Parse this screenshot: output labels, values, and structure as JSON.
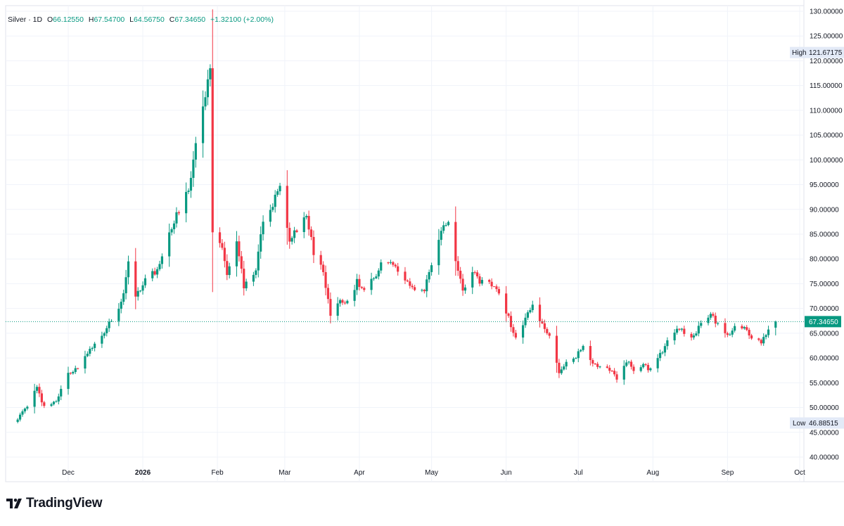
{
  "legend": {
    "symbol": "Silver",
    "interval": "1D",
    "open_label": "O",
    "open": "66.12550",
    "high_label": "H",
    "high": "67.54700",
    "low_label": "L",
    "low": "64.56750",
    "close_label": "C",
    "close": "67.34650",
    "change": "+1.32100 (+2.00%)"
  },
  "brand": {
    "name": "TradingView",
    "logo_icon": "tradingview-logo-icon"
  },
  "colors": {
    "up": "#089981",
    "down": "#f23645",
    "grid": "#f0f3fa",
    "price_line": "#089981",
    "badge_bg": "#e3eaf7"
  },
  "chart_data": {
    "type": "candlestick",
    "title": "Silver · 1D",
    "ylim": [
      40,
      130
    ],
    "y_ticks": [
      "130.00000",
      "125.00000",
      "120.00000",
      "115.00000",
      "110.00000",
      "105.00000",
      "100.00000",
      "95.00000",
      "90.00000",
      "85.00000",
      "80.00000",
      "75.00000",
      "70.00000",
      "65.00000",
      "60.00000",
      "55.00000",
      "50.00000",
      "45.00000",
      "40.00000"
    ],
    "x_ticks": [
      "Dec",
      "2026",
      "Feb",
      "Mar",
      "Apr",
      "May",
      "Jun",
      "Jul",
      "Aug",
      "Sep",
      "Oct"
    ],
    "grid": true,
    "current_price": "67.34650",
    "high_label": "High",
    "high_value": "121.67175",
    "low_label": "Low",
    "low_value": "46.88515",
    "anchors": [
      [
        "2025-11-10",
        47.5
      ],
      [
        "2025-11-14",
        50.5
      ],
      [
        "2025-11-18",
        53.8
      ],
      [
        "2025-11-21",
        50.2
      ],
      [
        "2025-11-26",
        51.0
      ],
      [
        "2025-12-01",
        57.0
      ],
      [
        "2025-12-05",
        58.0
      ],
      [
        "2025-12-10",
        61.5
      ],
      [
        "2025-12-15",
        64.8
      ],
      [
        "2025-12-19",
        67.5
      ],
      [
        "2025-12-23",
        71.0
      ],
      [
        "2025-12-26",
        79.0
      ],
      [
        "2025-12-29",
        72.0
      ],
      [
        "2026-01-02",
        76.0
      ],
      [
        "2026-01-06",
        77.5
      ],
      [
        "2026-01-09",
        80.0
      ],
      [
        "2026-01-13",
        86.5
      ],
      [
        "2026-01-16",
        90.0
      ],
      [
        "2026-01-20",
        94.0
      ],
      [
        "2026-01-23",
        103.5
      ],
      [
        "2026-01-27",
        113.0
      ],
      [
        "2026-01-29",
        118.0
      ],
      [
        "2026-01-30",
        85.0
      ],
      [
        "2026-02-03",
        82.0
      ],
      [
        "2026-02-05",
        77.0
      ],
      [
        "2026-02-09",
        84.0
      ],
      [
        "2026-02-12",
        74.0
      ],
      [
        "2026-02-17",
        78.0
      ],
      [
        "2026-02-20",
        88.0
      ],
      [
        "2026-02-24",
        91.0
      ],
      [
        "2026-02-27",
        95.5
      ],
      [
        "2026-03-03",
        83.5
      ],
      [
        "2026-03-06",
        86.0
      ],
      [
        "2026-03-10",
        88.5
      ],
      [
        "2026-03-13",
        81.5
      ],
      [
        "2026-03-17",
        78.0
      ],
      [
        "2026-03-20",
        68.0
      ],
      [
        "2026-03-24",
        72.0
      ],
      [
        "2026-03-27",
        71.0
      ],
      [
        "2026-03-31",
        75.5
      ],
      [
        "2026-04-03",
        73.5
      ],
      [
        "2026-04-07",
        76.0
      ],
      [
        "2026-04-10",
        79.0
      ],
      [
        "2026-04-14",
        80.0
      ],
      [
        "2026-04-17",
        77.0
      ],
      [
        "2026-04-21",
        76.0
      ],
      [
        "2026-04-24",
        73.5
      ],
      [
        "2026-04-28",
        74.0
      ],
      [
        "2026-05-01",
        79.0
      ],
      [
        "2026-05-05",
        86.0
      ],
      [
        "2026-05-08",
        87.0
      ],
      [
        "2026-05-11",
        79.5
      ],
      [
        "2026-05-14",
        73.5
      ],
      [
        "2026-05-18",
        77.5
      ],
      [
        "2026-05-21",
        75.5
      ],
      [
        "2026-05-26",
        75.0
      ],
      [
        "2026-05-29",
        73.0
      ],
      [
        "2026-06-02",
        68.0
      ],
      [
        "2026-06-05",
        64.0
      ],
      [
        "2026-06-09",
        68.0
      ],
      [
        "2026-06-12",
        70.5
      ],
      [
        "2026-06-16",
        66.5
      ],
      [
        "2026-06-19",
        64.5
      ],
      [
        "2026-06-23",
        57.0
      ],
      [
        "2026-06-26",
        59.0
      ],
      [
        "2026-06-30",
        60.5
      ],
      [
        "2026-07-03",
        62.5
      ],
      [
        "2026-07-07",
        59.0
      ],
      [
        "2026-07-10",
        58.0
      ],
      [
        "2026-07-14",
        57.5
      ],
      [
        "2026-07-17",
        56.0
      ],
      [
        "2026-07-21",
        59.5
      ],
      [
        "2026-07-24",
        57.5
      ],
      [
        "2026-07-28",
        59.0
      ],
      [
        "2026-07-31",
        57.5
      ],
      [
        "2026-08-04",
        60.5
      ],
      [
        "2026-08-07",
        63.5
      ],
      [
        "2026-08-11",
        66.0
      ],
      [
        "2026-08-14",
        65.0
      ],
      [
        "2026-08-18",
        64.0
      ],
      [
        "2026-08-21",
        67.5
      ],
      [
        "2026-08-25",
        69.0
      ],
      [
        "2026-08-28",
        66.5
      ],
      [
        "2026-09-01",
        64.5
      ],
      [
        "2026-09-04",
        66.5
      ],
      [
        "2026-09-08",
        66.0
      ],
      [
        "2026-09-11",
        64.0
      ],
      [
        "2026-09-15",
        63.0
      ],
      [
        "2026-09-18",
        66.0
      ],
      [
        "2026-09-21",
        67.3465
      ]
    ]
  }
}
